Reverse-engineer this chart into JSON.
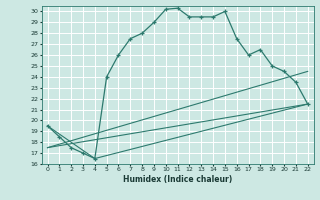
{
  "xlabel": "Humidex (Indice chaleur)",
  "bg_color": "#cde8e3",
  "grid_color": "#ffffff",
  "line_color": "#2d7a6e",
  "xlim": [
    -0.5,
    22.5
  ],
  "ylim": [
    16,
    30.5
  ],
  "xticks": [
    0,
    1,
    2,
    3,
    4,
    5,
    6,
    7,
    8,
    9,
    10,
    11,
    12,
    13,
    14,
    15,
    16,
    17,
    18,
    19,
    20,
    21,
    22
  ],
  "yticks": [
    16,
    17,
    18,
    19,
    20,
    21,
    22,
    23,
    24,
    25,
    26,
    27,
    28,
    29,
    30
  ],
  "curve1_x": [
    0,
    1,
    2,
    3,
    4,
    5,
    6,
    7,
    8,
    9,
    10,
    11,
    12,
    13,
    14,
    15,
    16,
    17,
    18,
    19,
    20,
    21,
    22
  ],
  "curve1_y": [
    19.5,
    18.5,
    17.5,
    17.0,
    16.5,
    24.0,
    26.0,
    27.5,
    28.0,
    29.0,
    30.2,
    30.3,
    29.5,
    29.5,
    29.5,
    30.0,
    27.5,
    26.0,
    26.5,
    25.0,
    24.5,
    23.5,
    21.5
  ],
  "curve2_x": [
    0,
    4,
    22
  ],
  "curve2_y": [
    19.5,
    16.5,
    21.5
  ],
  "curve3_x": [
    0,
    22
  ],
  "curve3_y": [
    17.5,
    24.5
  ],
  "curve4_x": [
    0,
    22
  ],
  "curve4_y": [
    17.5,
    21.5
  ],
  "label_fontsize": 5.0,
  "tick_fontsize": 4.5,
  "xlabel_fontsize": 5.5
}
